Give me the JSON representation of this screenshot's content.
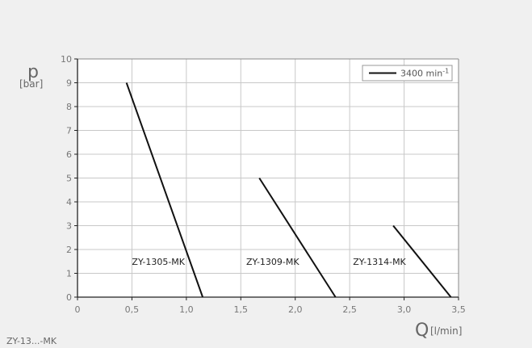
{
  "footnote": "ZY-13...-MK",
  "chart_data": {
    "type": "line",
    "title": "",
    "xlabel": "Q",
    "xunit": "[l/min]",
    "ylabel": "p",
    "yunit": "[bar]",
    "xlim": [
      0,
      3.5
    ],
    "ylim": [
      0,
      10
    ],
    "xticks": [
      0,
      0.5,
      1.0,
      1.5,
      2.0,
      2.5,
      3.0,
      3.5
    ],
    "xtick_labels": [
      "0",
      "0,5",
      "1,0",
      "1,5",
      "2,0",
      "2,5",
      "3,0",
      "3,5"
    ],
    "yticks": [
      0,
      1,
      2,
      3,
      4,
      5,
      6,
      7,
      8,
      9,
      10
    ],
    "ytick_labels": [
      "0",
      "1",
      "2",
      "3",
      "4",
      "5",
      "6",
      "7",
      "8",
      "9",
      "10"
    ],
    "grid": true,
    "legend": {
      "position": "top-right",
      "entries": [
        {
          "label": "3400 min",
          "superscript": "-1",
          "color": "#111111"
        }
      ]
    },
    "series": [
      {
        "name": "ZY-1305-MK",
        "color": "#111111",
        "x": [
          0.45,
          1.15
        ],
        "y": [
          9.0,
          0.0
        ],
        "label_at": [
          0.5,
          1.5
        ]
      },
      {
        "name": "ZY-1309-MK",
        "color": "#111111",
        "x": [
          1.67,
          2.37
        ],
        "y": [
          5.0,
          0.0
        ],
        "label_at": [
          1.55,
          1.5
        ]
      },
      {
        "name": "ZY-1314-MK",
        "color": "#111111",
        "x": [
          2.9,
          3.43
        ],
        "y": [
          3.0,
          0.0
        ],
        "label_at": [
          2.53,
          1.5
        ]
      }
    ]
  }
}
